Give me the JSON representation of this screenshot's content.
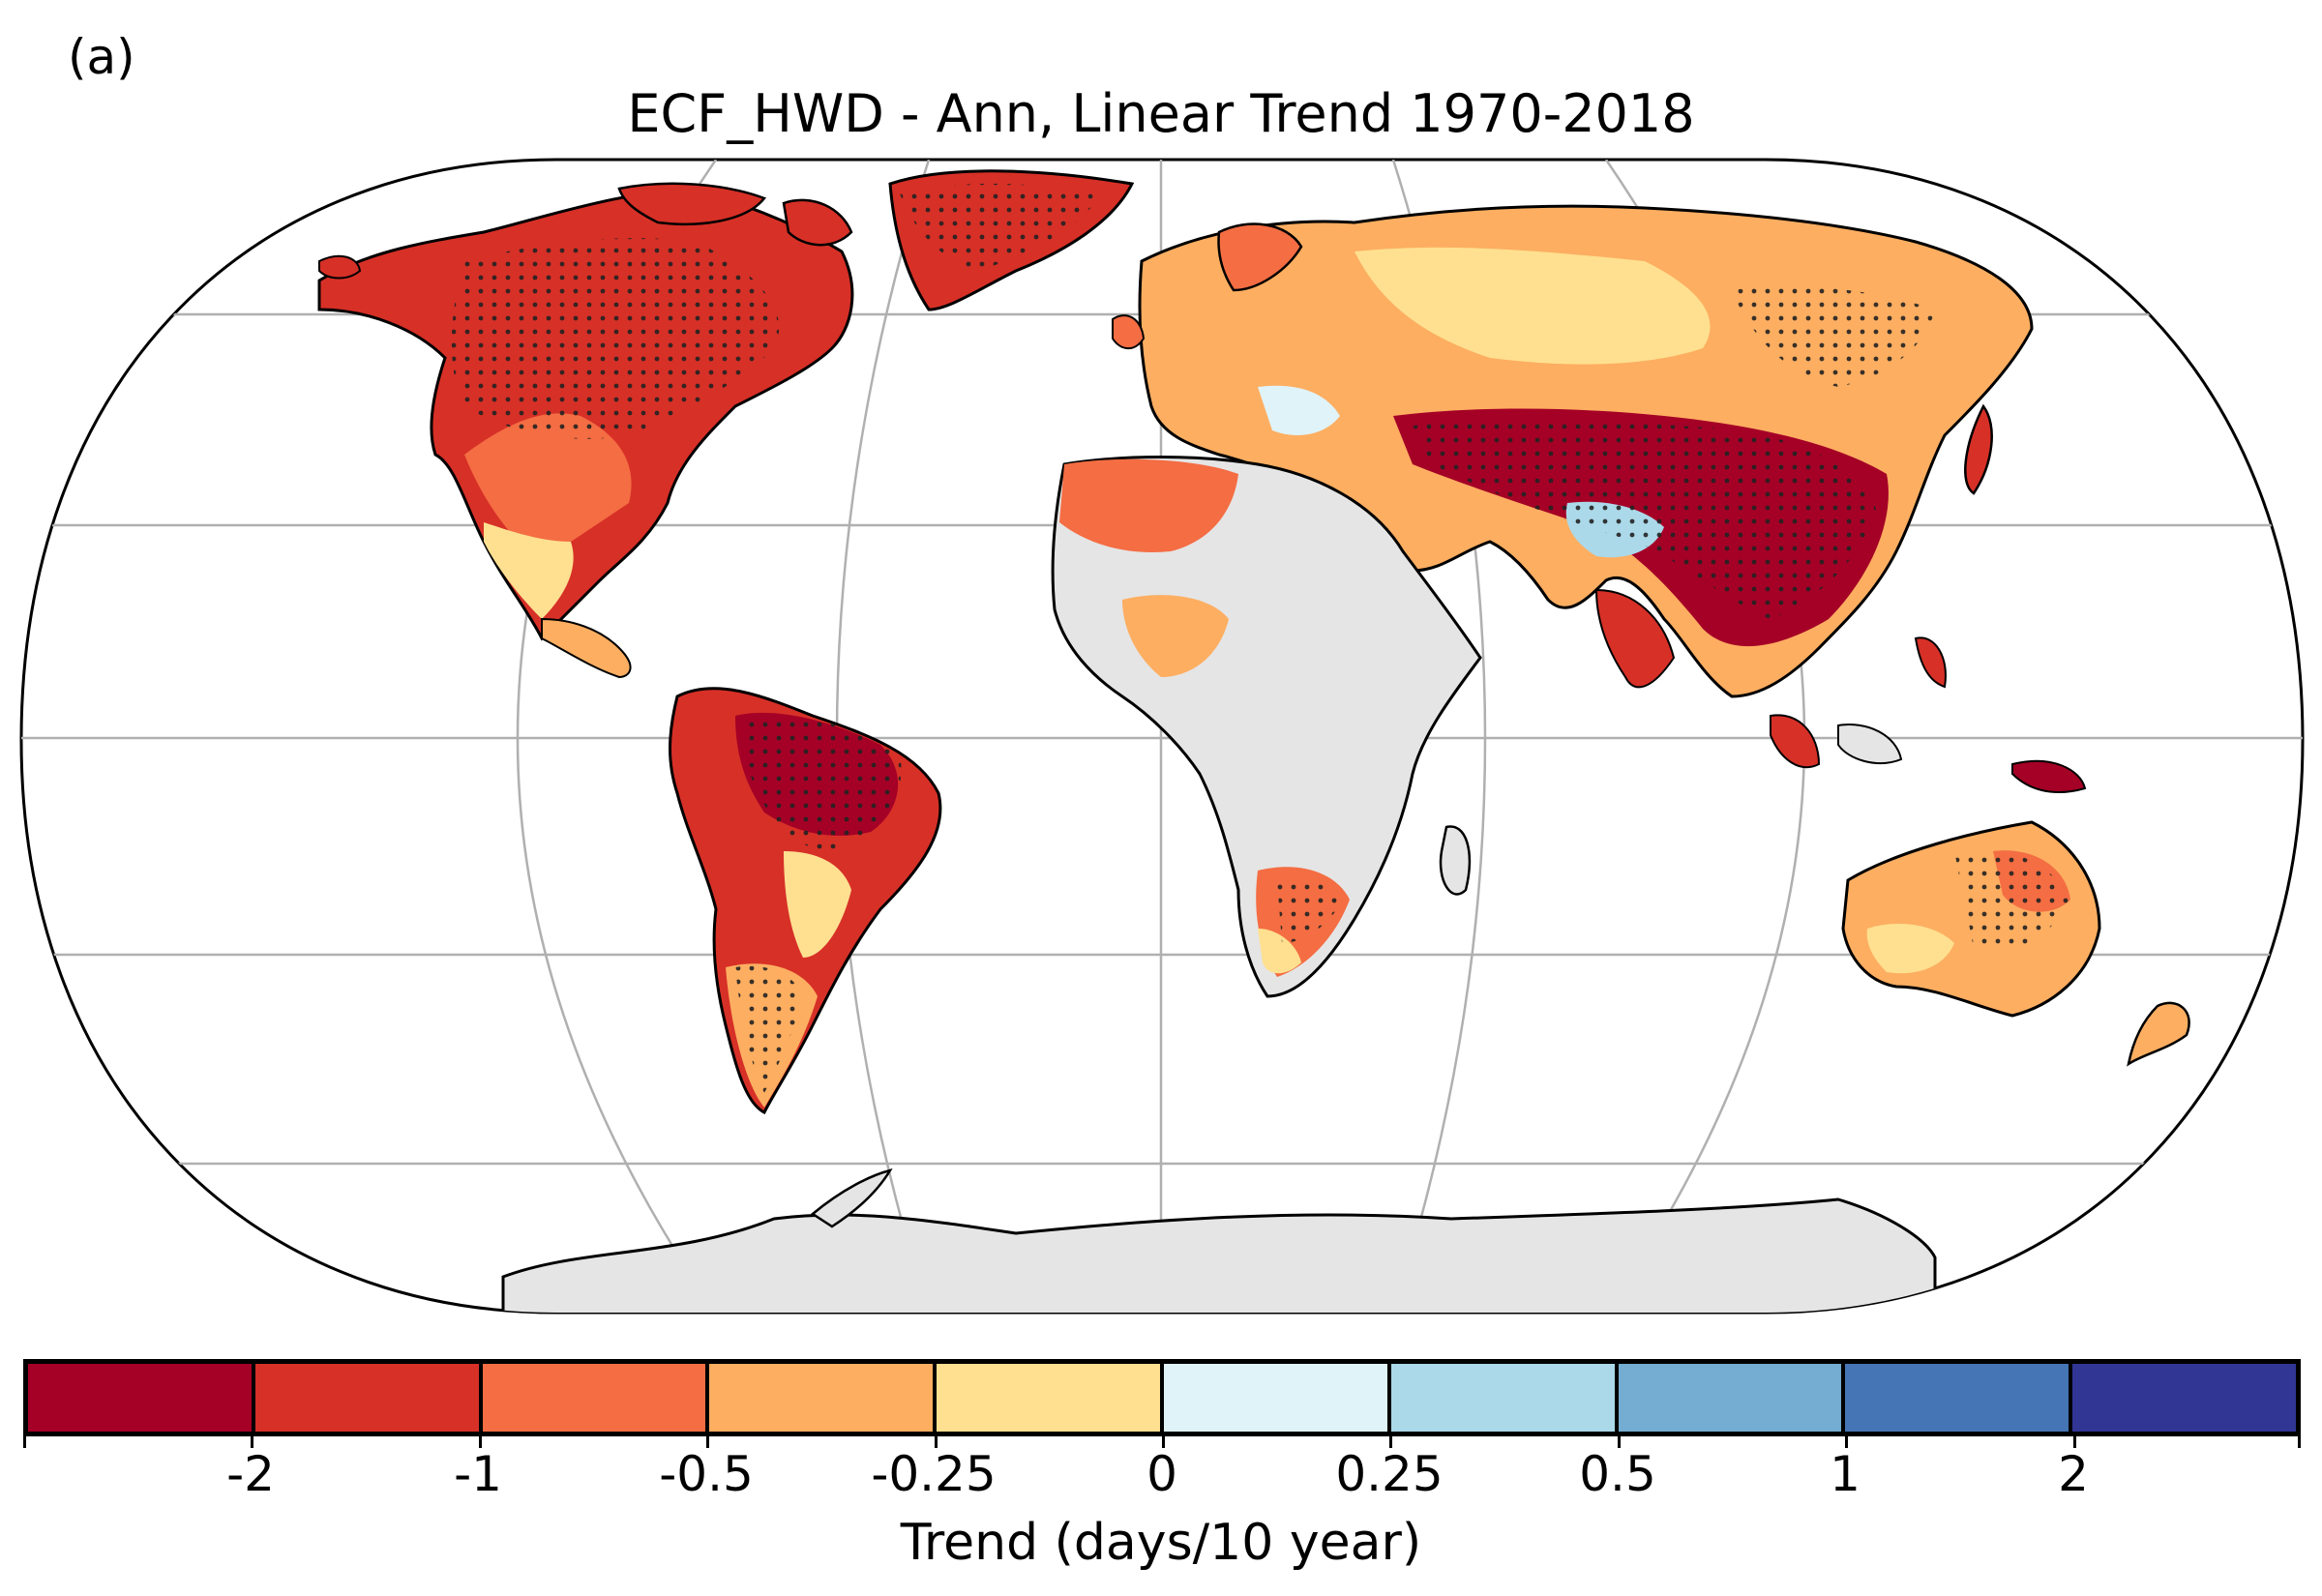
{
  "panel_label": "(a)",
  "title": "ECF_HWD - Ann, Linear Trend 1970-2018",
  "colorbar": {
    "label": "Trend (days/10 year)",
    "ticks": [
      "-2",
      "-1",
      "-0.5",
      "-0.25",
      "0",
      "0.25",
      "0.5",
      "1",
      "2"
    ],
    "colors": [
      "#a50026",
      "#d73027",
      "#f46d43",
      "#fdae61",
      "#fee090",
      "#e0f3f8",
      "#abd9e9",
      "#74add1",
      "#4575b4",
      "#313695"
    ]
  },
  "legend_map": {
    "no_data_color": "#e5e5e5",
    "stipple_color": "#222222"
  }
}
